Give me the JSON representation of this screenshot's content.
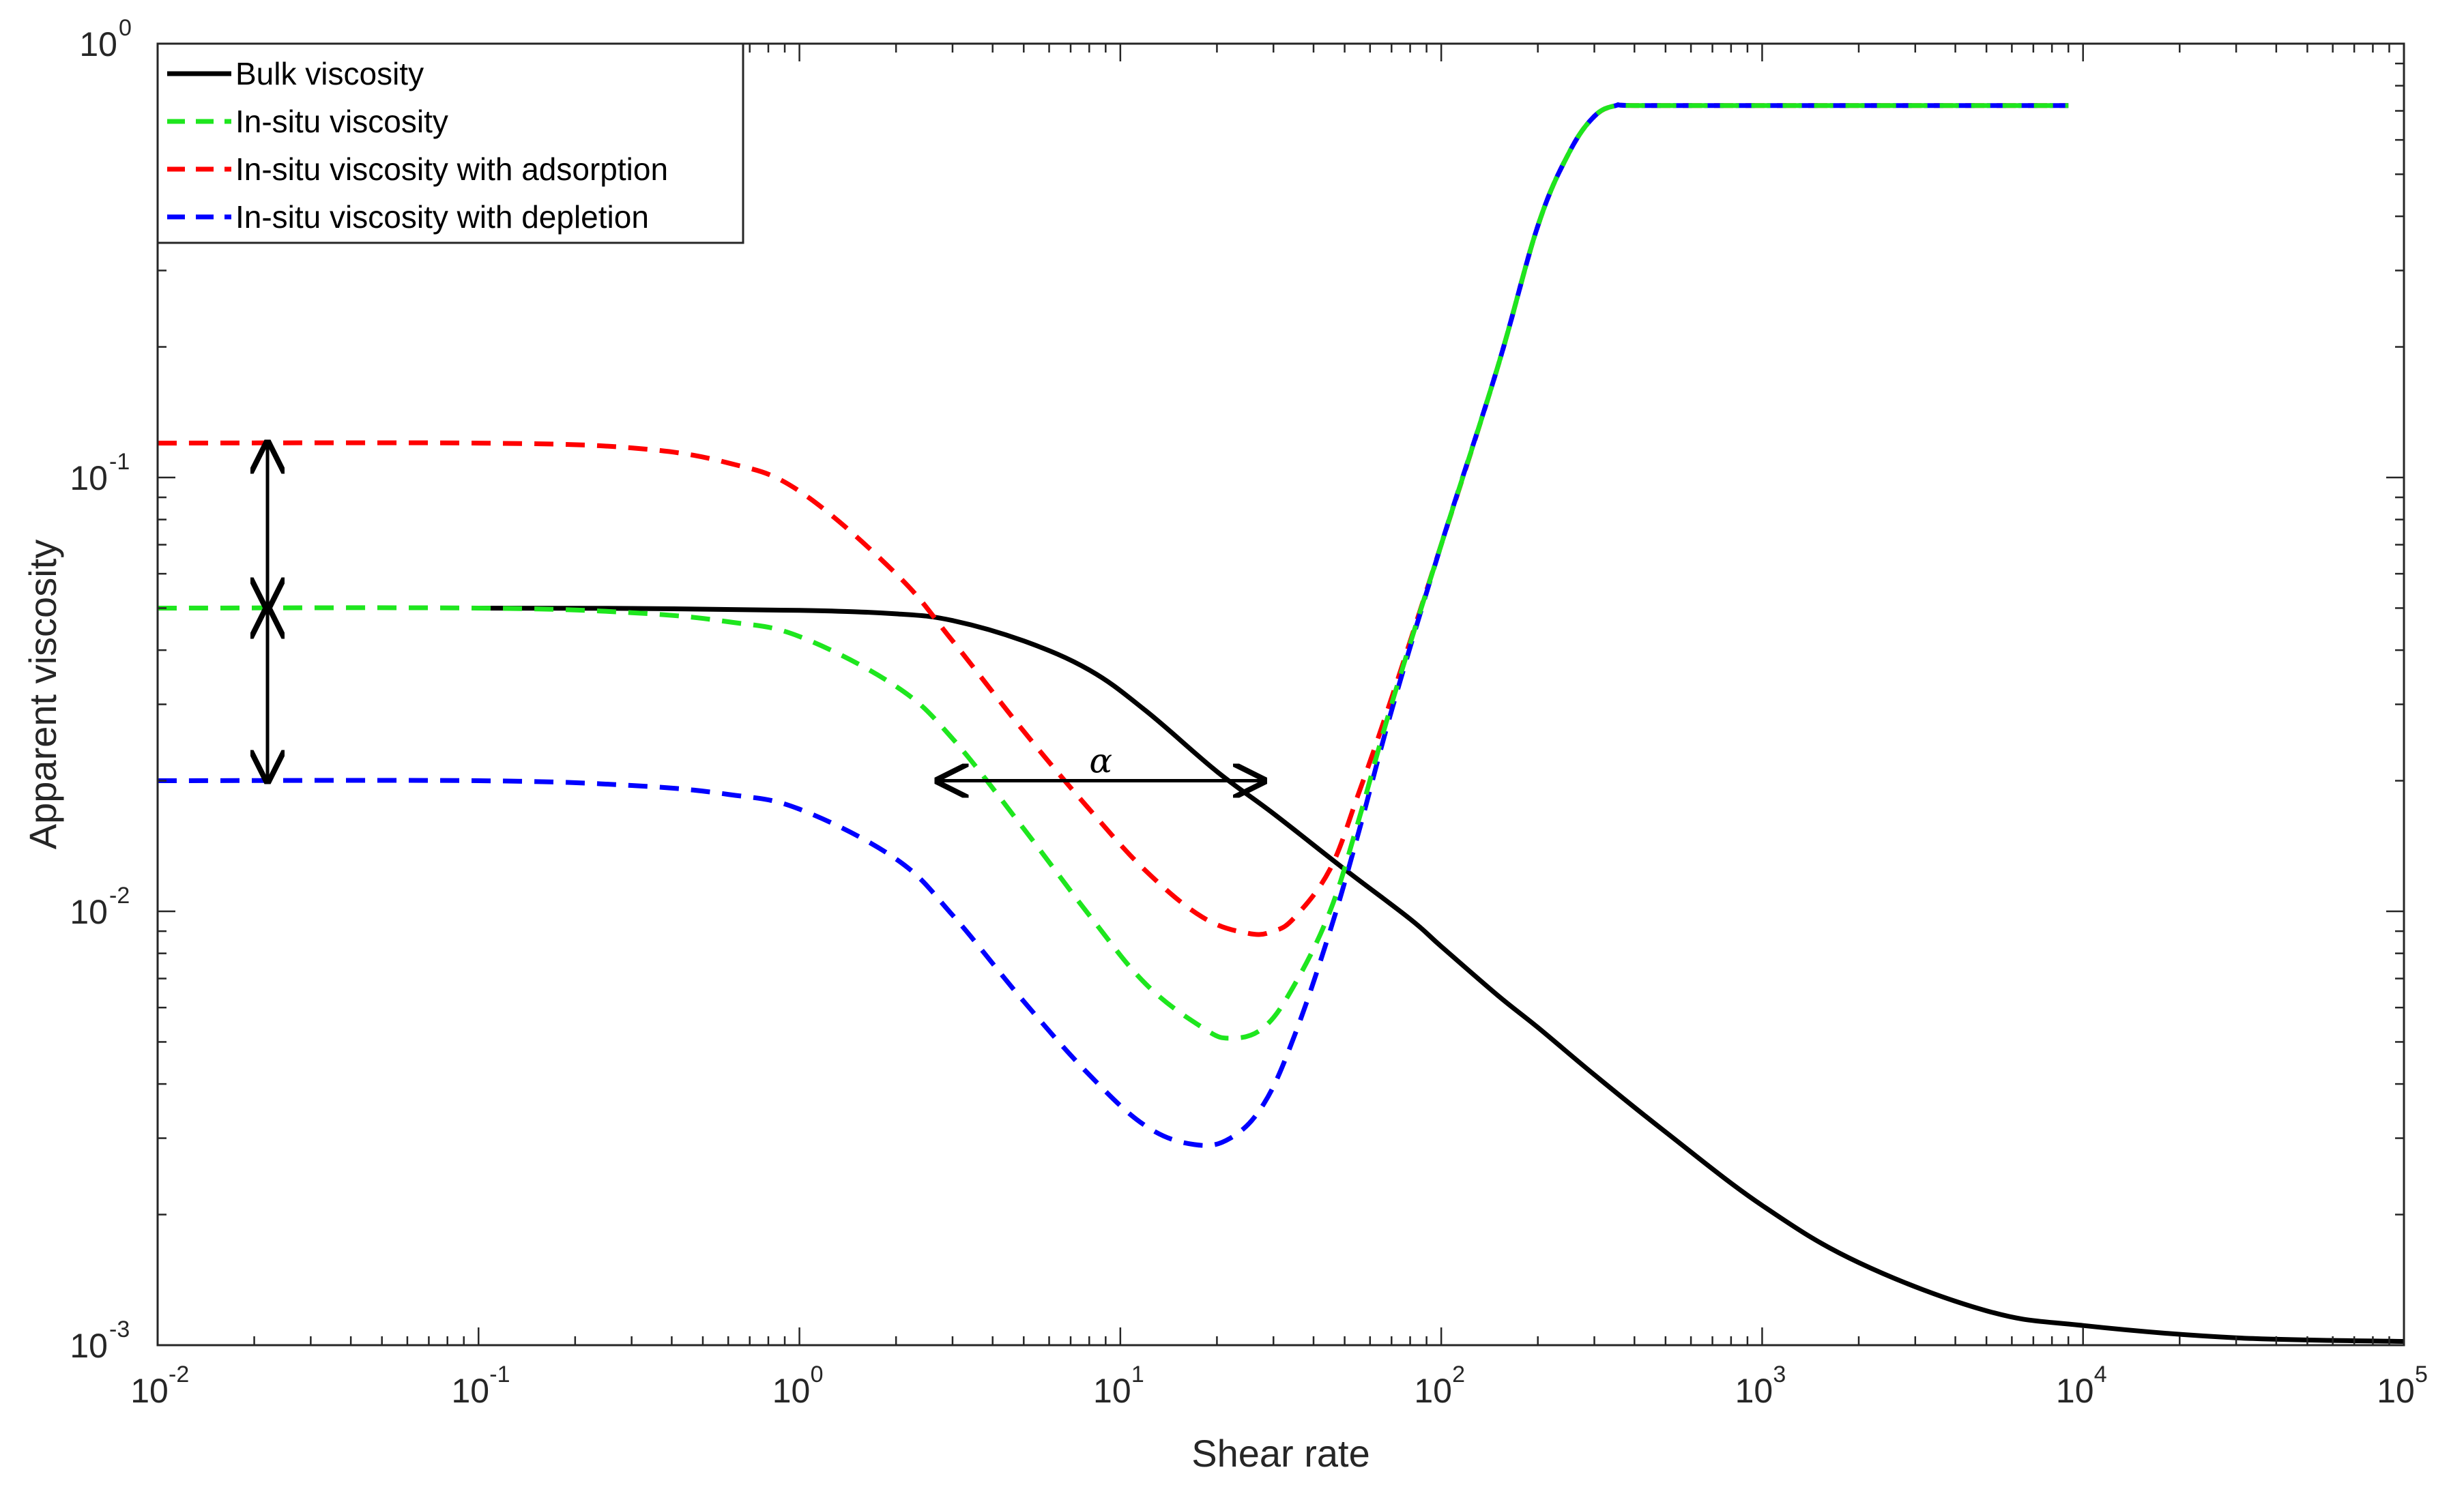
{
  "chart_data": {
    "type": "line",
    "title": "",
    "xlabel": "Shear rate",
    "ylabel": "Apparent viscosity",
    "xscale": "log",
    "yscale": "log",
    "xlim": [
      0.01,
      100000
    ],
    "ylim": [
      0.001,
      1
    ],
    "x_ticks": [
      {
        "base": "10",
        "exp": "-2"
      },
      {
        "base": "10",
        "exp": "-1"
      },
      {
        "base": "10",
        "exp": "0"
      },
      {
        "base": "10",
        "exp": "1"
      },
      {
        "base": "10",
        "exp": "2"
      },
      {
        "base": "10",
        "exp": "3"
      },
      {
        "base": "10",
        "exp": "4"
      },
      {
        "base": "10",
        "exp": "5"
      }
    ],
    "y_ticks": [
      {
        "base": "10",
        "exp": "-3"
      },
      {
        "base": "10",
        "exp": "-2"
      },
      {
        "base": "10",
        "exp": "-1"
      },
      {
        "base": "10",
        "exp": "0"
      }
    ],
    "grid": false,
    "legend_position": "top-left",
    "series": [
      {
        "name": "Bulk viscosity",
        "color": "#000000",
        "style": "solid",
        "x": [
          0.1,
          0.3,
          1,
          2,
          3,
          5,
          8,
          12,
          20,
          30,
          50,
          80,
          100,
          150,
          200,
          300,
          500,
          1000,
          2000,
          5000,
          10000,
          30000,
          100000
        ],
        "y": [
          0.05,
          0.0499,
          0.0494,
          0.0485,
          0.0468,
          0.042,
          0.036,
          0.029,
          0.021,
          0.0168,
          0.0125,
          0.0096,
          0.0083,
          0.0064,
          0.0054,
          0.0042,
          0.0031,
          0.0021,
          0.00155,
          0.0012,
          0.00111,
          0.00104,
          0.00102
        ]
      },
      {
        "name": "In-situ viscosity",
        "color": "#1ee61e",
        "style": "dashed",
        "x": [
          0.01,
          0.1,
          0.3,
          0.6,
          1,
          2,
          3,
          5,
          8,
          12,
          18,
          22,
          28,
          35,
          45,
          55,
          70,
          100,
          150,
          200,
          250,
          300,
          350,
          400,
          1000,
          5000,
          9000
        ],
        "y": [
          0.05,
          0.05,
          0.0488,
          0.0465,
          0.043,
          0.033,
          0.025,
          0.0155,
          0.0098,
          0.0068,
          0.0054,
          0.0051,
          0.0054,
          0.0068,
          0.01,
          0.016,
          0.03,
          0.07,
          0.18,
          0.38,
          0.56,
          0.68,
          0.72,
          0.72,
          0.72,
          0.72,
          0.72
        ]
      },
      {
        "name": "In-situ viscosity with adsorption",
        "color": "#ff0000",
        "style": "dashed",
        "x": [
          0.01,
          0.1,
          0.3,
          0.6,
          1,
          2,
          3,
          5,
          8,
          12,
          18,
          25,
          30,
          35,
          45,
          55,
          70,
          100,
          150,
          200,
          250,
          300,
          350,
          400,
          1000,
          5000,
          9000
        ],
        "y": [
          0.12,
          0.12,
          0.117,
          0.108,
          0.093,
          0.06,
          0.042,
          0.026,
          0.0172,
          0.0124,
          0.0097,
          0.0089,
          0.009,
          0.0097,
          0.0125,
          0.0185,
          0.031,
          0.07,
          0.18,
          0.38,
          0.56,
          0.68,
          0.72,
          0.72,
          0.72,
          0.72,
          0.72
        ]
      },
      {
        "name": "In-situ viscosity with depletion",
        "color": "#0000ff",
        "style": "dashed",
        "x": [
          0.01,
          0.1,
          0.3,
          0.6,
          1,
          2,
          3,
          5,
          8,
          12,
          17,
          22,
          28,
          35,
          45,
          55,
          70,
          100,
          150,
          200,
          250,
          300,
          350,
          400,
          1000,
          5000,
          9000
        ],
        "y": [
          0.02,
          0.02,
          0.0195,
          0.0186,
          0.0172,
          0.0132,
          0.0098,
          0.0062,
          0.0042,
          0.0032,
          0.0029,
          0.003,
          0.0036,
          0.0052,
          0.009,
          0.015,
          0.029,
          0.07,
          0.18,
          0.38,
          0.56,
          0.68,
          0.72,
          0.72,
          0.72,
          0.72,
          0.72
        ]
      }
    ],
    "annotations": [
      {
        "type": "double-arrow",
        "label": "",
        "from": {
          "x": 0.022,
          "y": 0.12
        },
        "to": {
          "x": 0.022,
          "y": 0.05
        }
      },
      {
        "type": "double-arrow",
        "label": "",
        "from": {
          "x": 0.022,
          "y": 0.05
        },
        "to": {
          "x": 0.022,
          "y": 0.02
        }
      },
      {
        "type": "double-arrow",
        "label": "α",
        "from": {
          "x": 2.7,
          "y": 0.02
        },
        "to": {
          "x": 28,
          "y": 0.02
        }
      }
    ]
  }
}
